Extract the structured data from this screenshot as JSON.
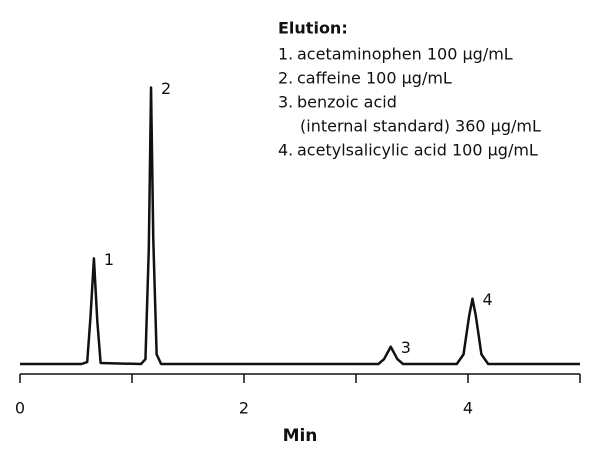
{
  "chart_data": {
    "type": "line",
    "xlabel": "Min",
    "legend_title": "Elution:",
    "legend_items": [
      {
        "number": "1.",
        "lines": [
          "acetaminophen  100 µg/mL"
        ]
      },
      {
        "number": "2.",
        "lines": [
          "caffeine  100 µg/mL"
        ]
      },
      {
        "number": "3.",
        "lines": [
          "benzoic acid",
          "(internal standard)  360 µg/mL"
        ]
      },
      {
        "number": "4.",
        "lines": [
          "acetylsalicylic acid  100 µg/mL"
        ]
      }
    ],
    "x": [
      0,
      0.55,
      0.6,
      0.63,
      0.66,
      0.69,
      0.72,
      1.08,
      1.12,
      1.15,
      1.17,
      1.19,
      1.22,
      1.26,
      3.2,
      3.25,
      3.31,
      3.37,
      3.42,
      3.9,
      3.96,
      4.01,
      4.04,
      4.07,
      4.12,
      4.18,
      5.0
    ],
    "values": [
      0,
      0,
      2,
      50,
      110,
      45,
      1,
      0,
      5,
      120,
      288,
      130,
      10,
      0,
      0,
      5,
      18,
      5,
      0,
      0,
      10,
      50,
      68,
      50,
      10,
      0,
      0
    ],
    "color": "#111111",
    "peak_labels": [
      {
        "label": "1",
        "x": 0.66,
        "y": 110
      },
      {
        "label": "2",
        "x": 1.17,
        "y": 288
      },
      {
        "label": "3",
        "x": 3.31,
        "y": 18
      },
      {
        "label": "4",
        "x": 4.04,
        "y": 68
      }
    ],
    "xlim": [
      0,
      5
    ],
    "xticks": [
      0,
      2,
      4
    ],
    "xminor_ticks": [
      1,
      3,
      5
    ],
    "ylim": [
      0,
      300
    ]
  }
}
